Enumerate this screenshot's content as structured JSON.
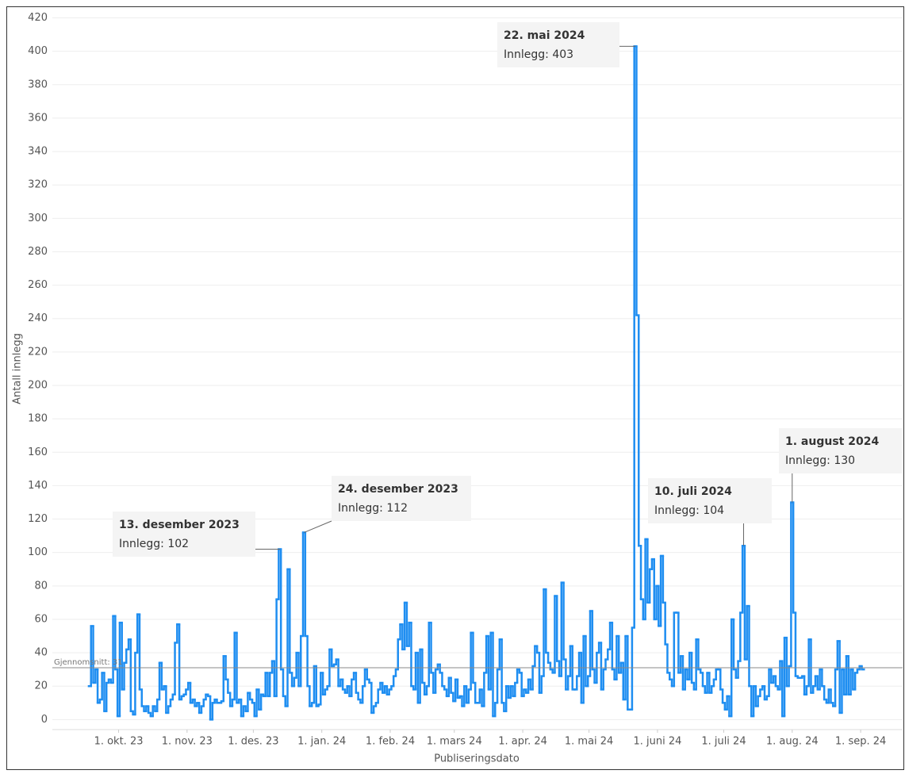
{
  "chart_data": {
    "type": "step-line",
    "ylabel": "Antall innlegg",
    "xlabel": "Publiseringsdato",
    "xlim": [
      "2023-09-01",
      "2024-09-20"
    ],
    "ylim": [
      -6,
      425
    ],
    "yticks": [
      0,
      20,
      40,
      60,
      80,
      100,
      120,
      140,
      160,
      180,
      200,
      220,
      240,
      260,
      280,
      300,
      320,
      340,
      360,
      380,
      400,
      420
    ],
    "xticks": [
      {
        "value": "2023-10-01",
        "label": "1. okt. 23"
      },
      {
        "value": "2023-11-01",
        "label": "1. nov. 23"
      },
      {
        "value": "2023-12-01",
        "label": "1. des. 23"
      },
      {
        "value": "2024-01-01",
        "label": "1. jan. 24"
      },
      {
        "value": "2024-02-01",
        "label": "1. feb. 24"
      },
      {
        "value": "2024-03-01",
        "label": "1. mars 24"
      },
      {
        "value": "2024-04-01",
        "label": "1. apr. 24"
      },
      {
        "value": "2024-05-01",
        "label": "1. mai 24"
      },
      {
        "value": "2024-06-01",
        "label": "1. juni 24"
      },
      {
        "value": "2024-07-01",
        "label": "1. juli 24"
      },
      {
        "value": "2024-08-01",
        "label": "1. aug. 24"
      },
      {
        "value": "2024-09-01",
        "label": "1. sep. 24"
      }
    ],
    "grid": true,
    "color": "#1f8ef1",
    "average": {
      "value": 31,
      "label": "Gjennomsnitt: 31"
    },
    "annotations": [
      {
        "title": "13. desember 2023",
        "text": "Innlegg: 102",
        "x": "2023-12-13",
        "y": 102
      },
      {
        "title": "24. desember 2023",
        "text": "Innlegg: 112",
        "x": "2023-12-24",
        "y": 112
      },
      {
        "title": "22. mai 2024",
        "text": "Innlegg: 403",
        "x": "2024-05-22",
        "y": 403
      },
      {
        "title": "10. juli 2024",
        "text": "Innlegg: 104",
        "x": "2024-07-10",
        "y": 104
      },
      {
        "title": "1. august 2024",
        "text": "Innlegg: 130",
        "x": "2024-08-01",
        "y": 130
      }
    ],
    "x": [
      "2023-09-18",
      "2023-09-19",
      "2023-09-20",
      "2023-09-21",
      "2023-09-22",
      "2023-09-23",
      "2023-09-24",
      "2023-09-25",
      "2023-09-26",
      "2023-09-27",
      "2023-09-28",
      "2023-09-29",
      "2023-09-30",
      "2023-10-01",
      "2023-10-02",
      "2023-10-03",
      "2023-10-04",
      "2023-10-05",
      "2023-10-06",
      "2023-10-07",
      "2023-10-08",
      "2023-10-09",
      "2023-10-10",
      "2023-10-11",
      "2023-10-12",
      "2023-10-13",
      "2023-10-14",
      "2023-10-15",
      "2023-10-16",
      "2023-10-17",
      "2023-10-18",
      "2023-10-19",
      "2023-10-20",
      "2023-10-21",
      "2023-10-22",
      "2023-10-23",
      "2023-10-24",
      "2023-10-25",
      "2023-10-26",
      "2023-10-27",
      "2023-10-28",
      "2023-10-29",
      "2023-10-30",
      "2023-10-31",
      "2023-11-01",
      "2023-11-02",
      "2023-11-03",
      "2023-11-04",
      "2023-11-05",
      "2023-11-06",
      "2023-11-07",
      "2023-11-08",
      "2023-11-09",
      "2023-11-10",
      "2023-11-11",
      "2023-11-12",
      "2023-11-13",
      "2023-11-14",
      "2023-11-15",
      "2023-11-16",
      "2023-11-17",
      "2023-11-18",
      "2023-11-19",
      "2023-11-20",
      "2023-11-21",
      "2023-11-22",
      "2023-11-23",
      "2023-11-24",
      "2023-11-25",
      "2023-11-26",
      "2023-11-27",
      "2023-11-28",
      "2023-11-29",
      "2023-11-30",
      "2023-12-01",
      "2023-12-02",
      "2023-12-03",
      "2023-12-04",
      "2023-12-05",
      "2023-12-06",
      "2023-12-07",
      "2023-12-08",
      "2023-12-09",
      "2023-12-10",
      "2023-12-11",
      "2023-12-12",
      "2023-12-13",
      "2023-12-14",
      "2023-12-15",
      "2023-12-16",
      "2023-12-17",
      "2023-12-18",
      "2023-12-19",
      "2023-12-20",
      "2023-12-21",
      "2023-12-22",
      "2023-12-23",
      "2023-12-24",
      "2023-12-25",
      "2023-12-26",
      "2023-12-27",
      "2023-12-28",
      "2023-12-29",
      "2023-12-30",
      "2023-12-31",
      "2024-01-01",
      "2024-01-02",
      "2024-01-03",
      "2024-01-04",
      "2024-01-05",
      "2024-01-06",
      "2024-01-07",
      "2024-01-08",
      "2024-01-09",
      "2024-01-10",
      "2024-01-11",
      "2024-01-12",
      "2024-01-13",
      "2024-01-14",
      "2024-01-15",
      "2024-01-16",
      "2024-01-17",
      "2024-01-18",
      "2024-01-19",
      "2024-01-20",
      "2024-01-21",
      "2024-01-22",
      "2024-01-23",
      "2024-01-24",
      "2024-01-25",
      "2024-01-26",
      "2024-01-27",
      "2024-01-28",
      "2024-01-29",
      "2024-01-30",
      "2024-01-31",
      "2024-02-01",
      "2024-02-02",
      "2024-02-03",
      "2024-02-04",
      "2024-02-05",
      "2024-02-06",
      "2024-02-07",
      "2024-02-08",
      "2024-02-09",
      "2024-02-10",
      "2024-02-11",
      "2024-02-12",
      "2024-02-13",
      "2024-02-14",
      "2024-02-15",
      "2024-02-16",
      "2024-02-17",
      "2024-02-18",
      "2024-02-19",
      "2024-02-20",
      "2024-02-21",
      "2024-02-22",
      "2024-02-23",
      "2024-02-24",
      "2024-02-25",
      "2024-02-26",
      "2024-02-27",
      "2024-02-28",
      "2024-02-29",
      "2024-03-01",
      "2024-03-02",
      "2024-03-03",
      "2024-03-04",
      "2024-03-05",
      "2024-03-06",
      "2024-03-07",
      "2024-03-08",
      "2024-03-09",
      "2024-03-10",
      "2024-03-11",
      "2024-03-12",
      "2024-03-13",
      "2024-03-14",
      "2024-03-15",
      "2024-03-16",
      "2024-03-17",
      "2024-03-18",
      "2024-03-19",
      "2024-03-20",
      "2024-03-21",
      "2024-03-22",
      "2024-03-23",
      "2024-03-24",
      "2024-03-25",
      "2024-03-26",
      "2024-03-27",
      "2024-03-28",
      "2024-03-29",
      "2024-03-30",
      "2024-03-31",
      "2024-04-01",
      "2024-04-02",
      "2024-04-03",
      "2024-04-04",
      "2024-04-05",
      "2024-04-06",
      "2024-04-07",
      "2024-04-08",
      "2024-04-09",
      "2024-04-10",
      "2024-04-11",
      "2024-04-12",
      "2024-04-13",
      "2024-04-14",
      "2024-04-15",
      "2024-04-16",
      "2024-04-17",
      "2024-04-18",
      "2024-04-19",
      "2024-04-20",
      "2024-04-21",
      "2024-04-22",
      "2024-04-23",
      "2024-04-24",
      "2024-04-25",
      "2024-04-26",
      "2024-04-27",
      "2024-04-28",
      "2024-04-29",
      "2024-04-30",
      "2024-05-01",
      "2024-05-02",
      "2024-05-03",
      "2024-05-04",
      "2024-05-05",
      "2024-05-06",
      "2024-05-07",
      "2024-05-08",
      "2024-05-09",
      "2024-05-10",
      "2024-05-11",
      "2024-05-12",
      "2024-05-13",
      "2024-05-14",
      "2024-05-15",
      "2024-05-16",
      "2024-05-17",
      "2024-05-18",
      "2024-05-19",
      "2024-05-20",
      "2024-05-21",
      "2024-05-22",
      "2024-05-23",
      "2024-05-24",
      "2024-05-25",
      "2024-05-26",
      "2024-05-27",
      "2024-05-28",
      "2024-05-29",
      "2024-05-30",
      "2024-05-31",
      "2024-06-01",
      "2024-06-02",
      "2024-06-03",
      "2024-06-04",
      "2024-06-05",
      "2024-06-06",
      "2024-06-07",
      "2024-06-08",
      "2024-06-09",
      "2024-06-10",
      "2024-06-11",
      "2024-06-12",
      "2024-06-13",
      "2024-06-14",
      "2024-06-15",
      "2024-06-16",
      "2024-06-17",
      "2024-06-18",
      "2024-06-19",
      "2024-06-20",
      "2024-06-21",
      "2024-06-22",
      "2024-06-23",
      "2024-06-24",
      "2024-06-25",
      "2024-06-26",
      "2024-06-27",
      "2024-06-28",
      "2024-06-29",
      "2024-06-30",
      "2024-07-01",
      "2024-07-02",
      "2024-07-03",
      "2024-07-04",
      "2024-07-05",
      "2024-07-06",
      "2024-07-07",
      "2024-07-08",
      "2024-07-09",
      "2024-07-10",
      "2024-07-11",
      "2024-07-12",
      "2024-07-13",
      "2024-07-14",
      "2024-07-15",
      "2024-07-16",
      "2024-07-17",
      "2024-07-18",
      "2024-07-19",
      "2024-07-20",
      "2024-07-21",
      "2024-07-22",
      "2024-07-23",
      "2024-07-24",
      "2024-07-25",
      "2024-07-26",
      "2024-07-27",
      "2024-07-28",
      "2024-07-29",
      "2024-07-30",
      "2024-07-31",
      "2024-08-01",
      "2024-08-02",
      "2024-08-03",
      "2024-08-04",
      "2024-08-05",
      "2024-08-06",
      "2024-08-07",
      "2024-08-08",
      "2024-08-09",
      "2024-08-10",
      "2024-08-11",
      "2024-08-12",
      "2024-08-13",
      "2024-08-14",
      "2024-08-15",
      "2024-08-16",
      "2024-08-17",
      "2024-08-18",
      "2024-08-19",
      "2024-08-20",
      "2024-08-21",
      "2024-08-22",
      "2024-08-23",
      "2024-08-24",
      "2024-08-25",
      "2024-08-26",
      "2024-08-27",
      "2024-08-28",
      "2024-08-29",
      "2024-08-30",
      "2024-08-31",
      "2024-09-01",
      "2024-09-02"
    ],
    "values": [
      20,
      56,
      22,
      30,
      10,
      12,
      28,
      5,
      22,
      24,
      22,
      62,
      30,
      2,
      58,
      18,
      34,
      42,
      48,
      5,
      3,
      40,
      63,
      18,
      8,
      5,
      8,
      4,
      2,
      8,
      5,
      12,
      34,
      18,
      20,
      4,
      8,
      12,
      15,
      46,
      57,
      12,
      14,
      15,
      18,
      22,
      10,
      12,
      8,
      10,
      4,
      8,
      12,
      15,
      14,
      0,
      10,
      12,
      10,
      10,
      11,
      38,
      24,
      16,
      8,
      12,
      52,
      10,
      12,
      2,
      8,
      5,
      16,
      12,
      10,
      2,
      18,
      6,
      15,
      14,
      28,
      14,
      28,
      35,
      14,
      72,
      102,
      30,
      14,
      8,
      90,
      28,
      20,
      25,
      40,
      20,
      50,
      112,
      50,
      20,
      8,
      10,
      32,
      8,
      9,
      28,
      15,
      18,
      20,
      42,
      32,
      33,
      36,
      20,
      24,
      18,
      16,
      20,
      14,
      24,
      28,
      16,
      12,
      10,
      20,
      30,
      24,
      22,
      4,
      8,
      10,
      18,
      22,
      16,
      20,
      15,
      18,
      20,
      26,
      30,
      48,
      57,
      42,
      70,
      44,
      58,
      20,
      18,
      40,
      10,
      42,
      22,
      15,
      20,
      58,
      28,
      16,
      30,
      33,
      28,
      20,
      18,
      14,
      25,
      16,
      11,
      24,
      13,
      14,
      8,
      20,
      10,
      18,
      52,
      22,
      10,
      10,
      18,
      8,
      28,
      50,
      18,
      52,
      2,
      10,
      30,
      48,
      10,
      5,
      20,
      13,
      20,
      14,
      22,
      30,
      28,
      14,
      18,
      16,
      24,
      18,
      32,
      44,
      40,
      16,
      26,
      78,
      40,
      34,
      30,
      28,
      74,
      35,
      26,
      82,
      36,
      18,
      26,
      44,
      18,
      18,
      26,
      40,
      10,
      50,
      20,
      26,
      65,
      30,
      22,
      40,
      46,
      18,
      30,
      36,
      42,
      58,
      30,
      24,
      50,
      28,
      34,
      12,
      50,
      6,
      6,
      55,
      403,
      242,
      104,
      72,
      60,
      108,
      70,
      90,
      96,
      60,
      80,
      56,
      98,
      70,
      45,
      28,
      24,
      20,
      64,
      64,
      28,
      38,
      18,
      30,
      24,
      40,
      22,
      18,
      48,
      30,
      28,
      20,
      16,
      28,
      16,
      20,
      24,
      30,
      30,
      18,
      10,
      6,
      14,
      2,
      60,
      30,
      25,
      35,
      64,
      104,
      36,
      68,
      20,
      2,
      20,
      8,
      14,
      18,
      20,
      12,
      14,
      30,
      22,
      26,
      20,
      18,
      35,
      2,
      49,
      20,
      32,
      130,
      64,
      26,
      25,
      25,
      26,
      15,
      20,
      48,
      16,
      20,
      26,
      18,
      30,
      20,
      12,
      10,
      18,
      10,
      8,
      30,
      47,
      4,
      30,
      15,
      38,
      15,
      30,
      18,
      28,
      30,
      32,
      30
    ]
  }
}
